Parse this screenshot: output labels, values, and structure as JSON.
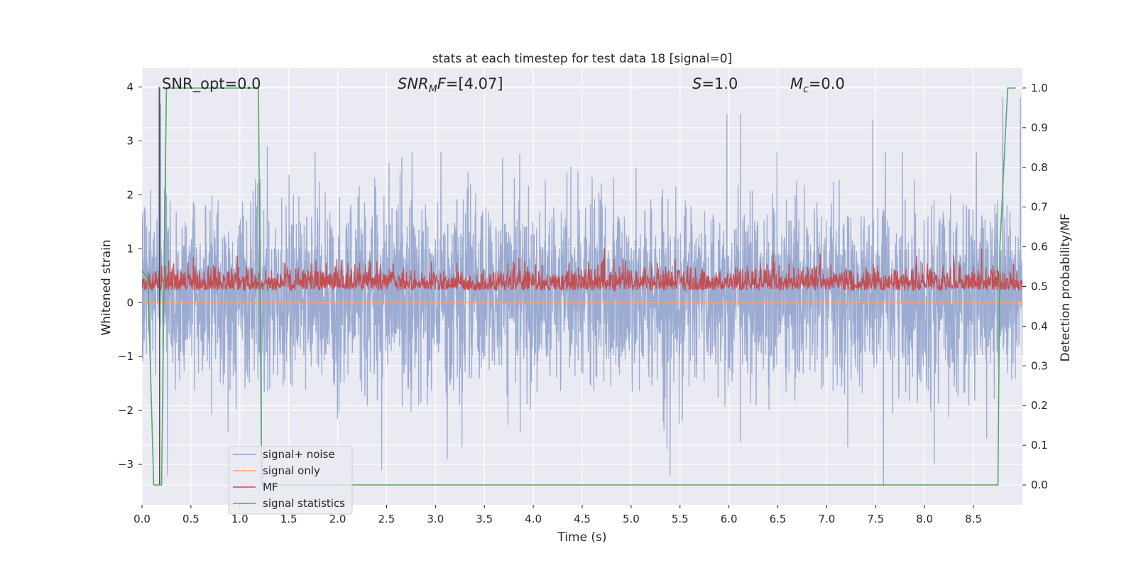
{
  "chart_data": {
    "type": "line",
    "title": "stats at each timestep for test data 18 [signal=0]",
    "xlabel": "Time (s)",
    "ylabel": "Whitened strain",
    "y2label": "Detection probability/MF",
    "xlim": [
      0.0,
      9.0
    ],
    "ylim": [
      -3.75,
      4.35
    ],
    "y2lim": [
      -0.05,
      1.05
    ],
    "xticks": [
      0.0,
      0.5,
      1.0,
      1.5,
      2.0,
      2.5,
      3.0,
      3.5,
      4.0,
      4.5,
      5.0,
      5.5,
      6.0,
      6.5,
      7.0,
      7.5,
      8.0,
      8.5
    ],
    "xtick_labels": [
      "0.0",
      "0.5",
      "1.0",
      "1.5",
      "2.0",
      "2.5",
      "3.0",
      "3.5",
      "4.0",
      "4.5",
      "5.0",
      "5.5",
      "6.0",
      "6.5",
      "7.0",
      "7.5",
      "8.0",
      "8.5"
    ],
    "yticks": [
      -3,
      -2,
      -1,
      0,
      1,
      2,
      3,
      4
    ],
    "ytick_labels": [
      "−3",
      "−2",
      "−1",
      "0",
      "1",
      "2",
      "3",
      "4"
    ],
    "y2ticks": [
      0.0,
      0.1,
      0.2,
      0.3,
      0.4,
      0.5,
      0.6,
      0.7,
      0.8,
      0.9,
      1.0
    ],
    "y2tick_labels": [
      "0.0",
      "0.1",
      "0.2",
      "0.3",
      "0.4",
      "0.5",
      "0.6",
      "0.7",
      "0.8",
      "0.9",
      "1.0"
    ],
    "grid": true,
    "legend_position": "lower-left",
    "annotations": {
      "snr_opt": "SNR_opt=0.0",
      "snr_mf_base": "SNR",
      "snr_mf_sub": "M",
      "snr_mf_rest": "F=[4.07]",
      "s_italic": "S",
      "s_rest": "=1.0",
      "mc_base": "M",
      "mc_sub": "c",
      "mc_rest": "=0.0"
    },
    "series": [
      {
        "name": "signal+ noise",
        "axis": "left",
        "color": "#8da0cb",
        "description_values": {
          "t_start": 0.0,
          "t_end": 9.0,
          "approx_min": -3.4,
          "approx_max": 4.0,
          "typical_range": [
            -1.7,
            2.1
          ]
        },
        "peaks": [
          [
            0.17,
            4.0
          ],
          [
            0.19,
            3.7
          ],
          [
            0.24,
            2.9
          ],
          [
            1.28,
            2.9
          ],
          [
            5.98,
            3.5
          ],
          [
            6.12,
            3.5
          ],
          [
            7.47,
            3.4
          ],
          [
            8.8,
            3.8
          ],
          [
            8.98,
            3.8
          ]
        ],
        "troughs": [
          [
            0.26,
            -3.2
          ],
          [
            1.22,
            -3.4
          ],
          [
            2.45,
            -3.1
          ],
          [
            3.12,
            -2.9
          ],
          [
            5.4,
            -3.2
          ],
          [
            7.58,
            -3.4
          ],
          [
            8.1,
            -3.0
          ]
        ]
      },
      {
        "name": "signal only",
        "axis": "left",
        "color": "#f4a582",
        "values_note": "flat at 0 (no signal injected)",
        "x": [
          0.0,
          9.0
        ],
        "y": [
          0.0,
          0.0
        ]
      },
      {
        "name": "MF",
        "axis": "right",
        "color": "#c44e52",
        "typical_range": [
          0.49,
          0.6
        ],
        "approx_max": 0.63
      },
      {
        "name": "signal statistics",
        "axis": "right",
        "color": "#55a868",
        "x": [
          0.0,
          0.06,
          0.12,
          0.17,
          0.2,
          0.25,
          1.19,
          1.22,
          1.23,
          1.25,
          8.75,
          8.77,
          8.85,
          8.93
        ],
        "y": [
          0.54,
          0.52,
          0.0,
          0.0,
          0.0,
          1.0,
          1.0,
          0.1,
          0.0,
          0.0,
          0.0,
          0.6,
          1.0,
          1.0
        ]
      }
    ],
    "colors": {
      "background": "#eaeaf2",
      "grid": "#ffffff",
      "vertical_marker": "#4a4a4a"
    }
  }
}
